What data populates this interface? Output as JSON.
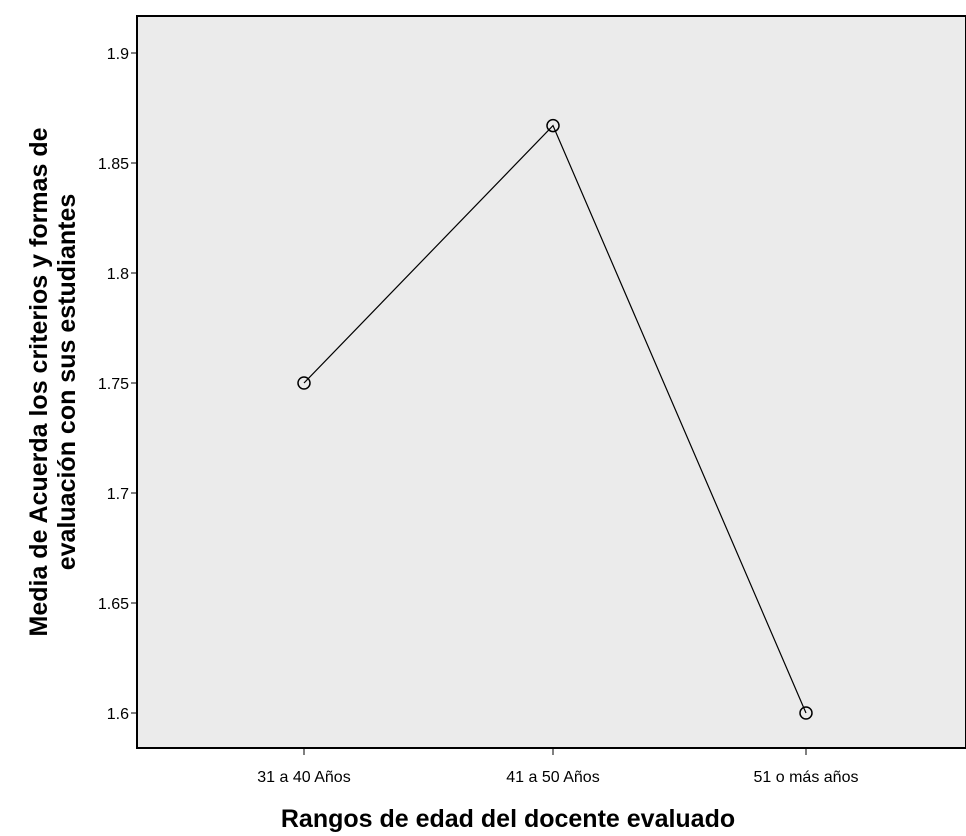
{
  "chart_data": {
    "type": "line",
    "title": "",
    "categories": [
      "31 a 40 Años",
      "41 a 50 Años",
      "51 o más años"
    ],
    "series": [
      {
        "values": [
          1.75,
          1.867,
          1.6
        ]
      }
    ],
    "xlabel": "Rangos de edad del docente evaluado",
    "ylabel_lines": [
      "Media de Acuerda los criterios y formas de",
      "evaluación con sus estudiantes"
    ],
    "ylim": [
      1.6,
      1.9
    ],
    "yticks": [
      1.6,
      1.65,
      1.7,
      1.75,
      1.8,
      1.85,
      1.9
    ],
    "ytick_labels": [
      "1.6",
      "1.65",
      "1.7",
      "1.75",
      "1.8",
      "1.85",
      "1.9"
    ],
    "grid": false,
    "legend": "none",
    "marker": "open-circle",
    "colors": {
      "plot_background": "#ebebeb",
      "line": "#000000"
    }
  }
}
